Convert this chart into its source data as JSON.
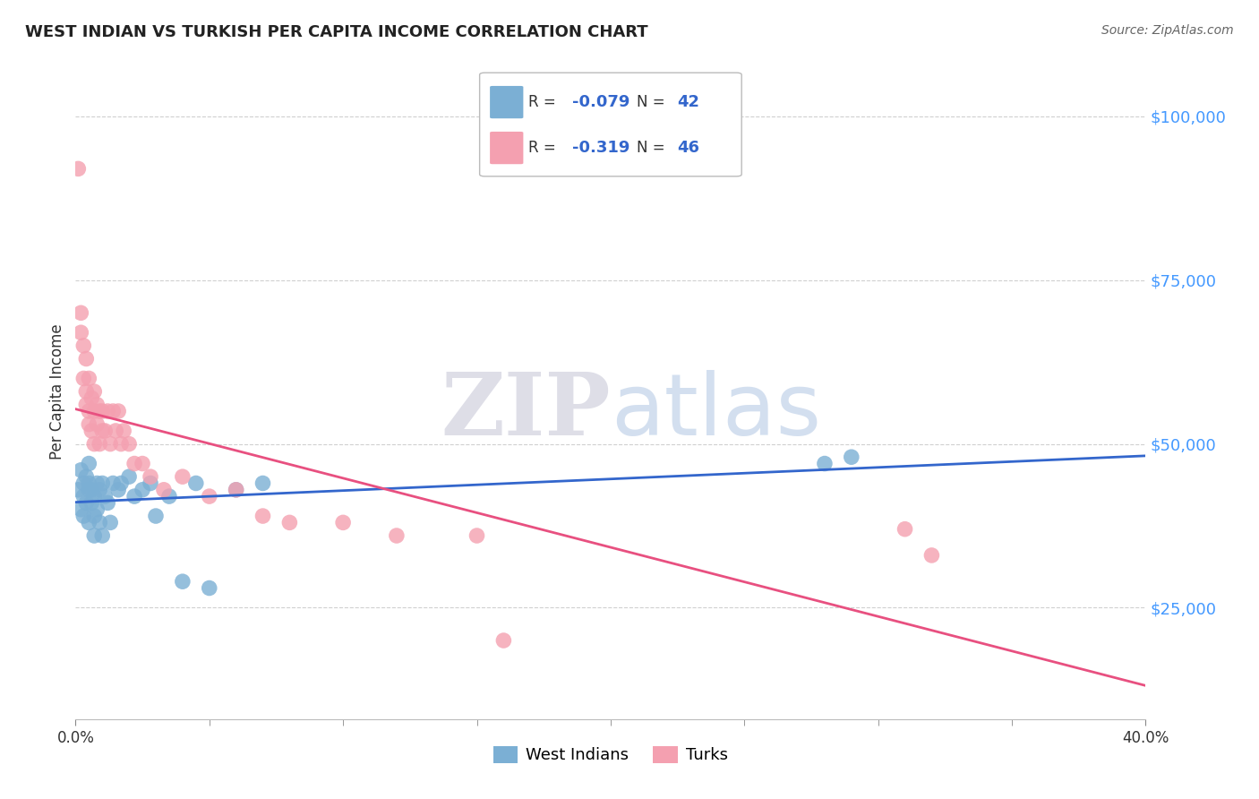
{
  "title": "WEST INDIAN VS TURKISH PER CAPITA INCOME CORRELATION CHART",
  "source": "Source: ZipAtlas.com",
  "ylabel": "Per Capita Income",
  "ytick_labels": [
    "$25,000",
    "$50,000",
    "$75,000",
    "$100,000"
  ],
  "ytick_values": [
    25000,
    50000,
    75000,
    100000
  ],
  "ymin": 8000,
  "ymax": 108000,
  "xmin": 0.0,
  "xmax": 0.4,
  "background_color": "#ffffff",
  "grid_color": "#d0d0d0",
  "west_indian_color": "#7bafd4",
  "turks_color": "#f4a0b0",
  "trendline_wi_color": "#3366cc",
  "trendline_turks_color": "#e85080",
  "legend_R_wi": "-0.079",
  "legend_N_wi": "42",
  "legend_R_turks": "-0.319",
  "legend_N_turks": "46",
  "wi_x": [
    0.001,
    0.002,
    0.002,
    0.003,
    0.003,
    0.003,
    0.004,
    0.004,
    0.005,
    0.005,
    0.005,
    0.005,
    0.006,
    0.006,
    0.007,
    0.007,
    0.007,
    0.008,
    0.008,
    0.009,
    0.009,
    0.01,
    0.01,
    0.011,
    0.012,
    0.013,
    0.014,
    0.016,
    0.017,
    0.02,
    0.022,
    0.025,
    0.028,
    0.03,
    0.035,
    0.04,
    0.045,
    0.05,
    0.06,
    0.07,
    0.28,
    0.29
  ],
  "wi_y": [
    43000,
    46000,
    40000,
    44000,
    42000,
    39000,
    45000,
    41000,
    44000,
    43000,
    47000,
    38000,
    41000,
    43000,
    39000,
    42000,
    36000,
    44000,
    40000,
    43000,
    38000,
    44000,
    36000,
    42000,
    41000,
    38000,
    44000,
    43000,
    44000,
    45000,
    42000,
    43000,
    44000,
    39000,
    42000,
    29000,
    44000,
    28000,
    43000,
    44000,
    47000,
    48000
  ],
  "turks_x": [
    0.001,
    0.002,
    0.002,
    0.003,
    0.003,
    0.004,
    0.004,
    0.004,
    0.005,
    0.005,
    0.005,
    0.006,
    0.006,
    0.007,
    0.007,
    0.007,
    0.008,
    0.008,
    0.009,
    0.009,
    0.01,
    0.01,
    0.011,
    0.012,
    0.013,
    0.014,
    0.015,
    0.016,
    0.017,
    0.018,
    0.02,
    0.022,
    0.025,
    0.028,
    0.033,
    0.04,
    0.05,
    0.06,
    0.07,
    0.08,
    0.1,
    0.12,
    0.15,
    0.16,
    0.31,
    0.32
  ],
  "turks_y": [
    92000,
    70000,
    67000,
    65000,
    60000,
    63000,
    58000,
    56000,
    60000,
    55000,
    53000,
    57000,
    52000,
    55000,
    50000,
    58000,
    53000,
    56000,
    50000,
    55000,
    52000,
    55000,
    52000,
    55000,
    50000,
    55000,
    52000,
    55000,
    50000,
    52000,
    50000,
    47000,
    47000,
    45000,
    43000,
    45000,
    42000,
    43000,
    39000,
    38000,
    38000,
    36000,
    36000,
    20000,
    37000,
    33000
  ]
}
